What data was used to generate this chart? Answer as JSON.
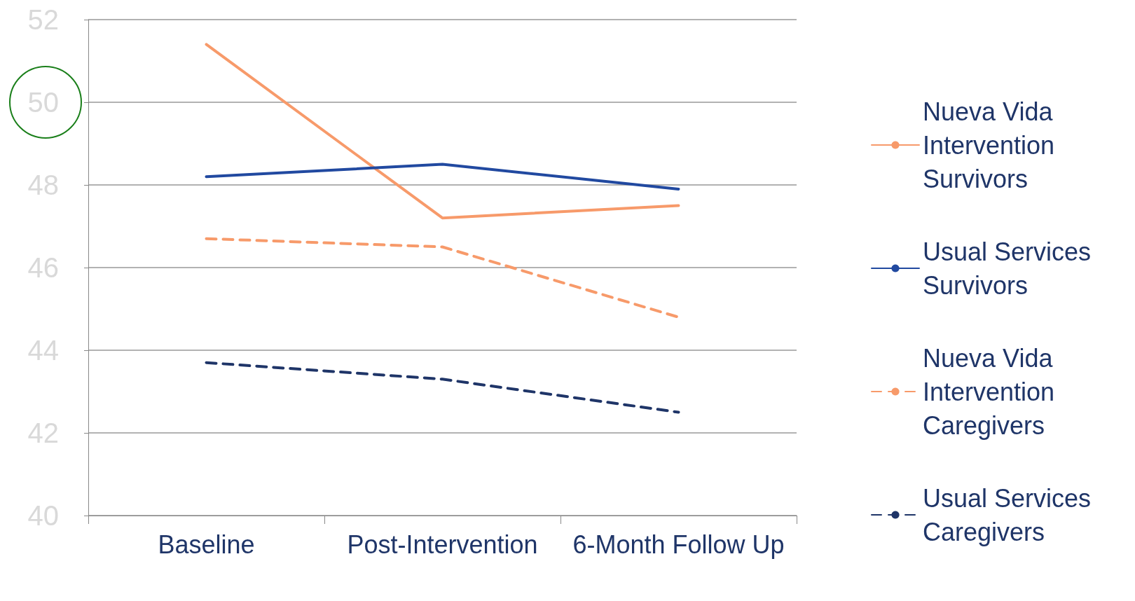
{
  "chart_data": {
    "type": "line",
    "categories": [
      "Baseline",
      "Post-Intervention",
      "6-Month Follow Up"
    ],
    "series": [
      {
        "name": "Nueva Vida Intervention Survivors",
        "color": "#f79a6a",
        "line_style": "solid",
        "values": [
          51.4,
          47.2,
          47.5
        ]
      },
      {
        "name": "Usual Services Survivors",
        "color": "#2149a0",
        "line_style": "solid",
        "values": [
          48.2,
          48.5,
          47.9
        ]
      },
      {
        "name": "Nueva Vida Intervention Caregivers",
        "color": "#f79a6a",
        "line_style": "dashed",
        "values": [
          46.7,
          46.5,
          44.8
        ]
      },
      {
        "name": "Usual Services Caregivers",
        "color": "#1f3568",
        "line_style": "dashed",
        "values": [
          43.7,
          43.3,
          42.5
        ]
      }
    ],
    "ylim": [
      40,
      52
    ],
    "yticks": [
      40,
      42,
      44,
      46,
      48,
      50,
      52
    ],
    "grid": "y",
    "legend": "right",
    "marker": "none"
  }
}
